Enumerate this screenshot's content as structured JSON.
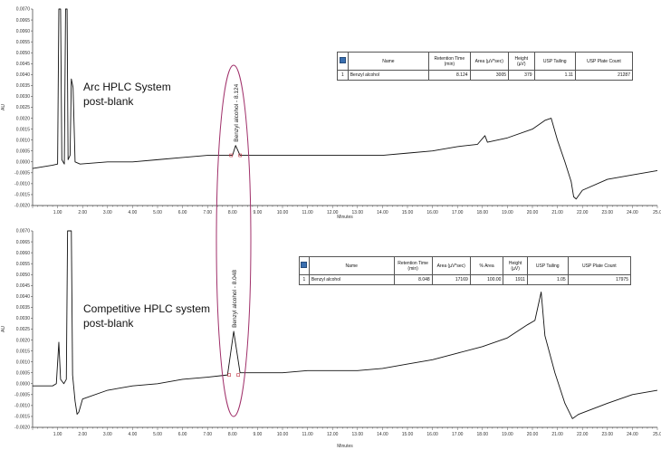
{
  "chart_data": [
    {
      "type": "line",
      "annotation": [
        "Arc HPLC System",
        "post-blank"
      ],
      "xlabel": "Minutes",
      "ylabel": "AU",
      "xlim": [
        0.0,
        25.0
      ],
      "ylim": [
        -0.002,
        0.007
      ],
      "xticks": [
        "1.00",
        "2.00",
        "3.00",
        "4.00",
        "5.00",
        "6.00",
        "7.00",
        "8.00",
        "9.00",
        "10.00",
        "11.00",
        "12.00",
        "13.00",
        "14.00",
        "15.00",
        "16.00",
        "17.00",
        "18.00",
        "19.00",
        "20.00",
        "21.00",
        "22.00",
        "23.00",
        "24.00",
        "25.0"
      ],
      "yticks": [
        "0.0070",
        "0.0065",
        "0.0060",
        "0.0055",
        "0.0050",
        "0.0045",
        "0.0040",
        "0.0035",
        "0.0030",
        "0.0025",
        "0.0020",
        "0.0015",
        "0.0010",
        "0.0005",
        "0.0000",
        "-0.0005",
        "-0.0010",
        "-0.0015",
        "-0.0020"
      ],
      "peak_label": "Benzyl alcohol - 8.124",
      "series": [
        {
          "points": [
            [
              0.0,
              -0.0003
            ],
            [
              0.8,
              -0.00015
            ],
            [
              1.0,
              -0.0001
            ],
            [
              1.05,
              0.0075
            ],
            [
              1.12,
              0.0075
            ],
            [
              1.17,
              0.0001
            ],
            [
              1.27,
              -0.0001
            ],
            [
              1.32,
              0.0075
            ],
            [
              1.38,
              0.0075
            ],
            [
              1.42,
              0.0001
            ],
            [
              1.5,
              0.0003
            ],
            [
              1.55,
              0.0038
            ],
            [
              1.62,
              0.0034
            ],
            [
              1.7,
              0.0
            ],
            [
              1.9,
              -0.0001
            ],
            [
              3.0,
              0.0
            ],
            [
              4.0,
              0.0
            ],
            [
              5.0,
              0.0001
            ],
            [
              6.0,
              0.0002
            ],
            [
              7.0,
              0.0003
            ],
            [
              8.0,
              0.0003
            ],
            [
              8.124,
              0.00075
            ],
            [
              8.3,
              0.0003
            ],
            [
              9.0,
              0.0003
            ],
            [
              10.0,
              0.0003
            ],
            [
              11.0,
              0.0003
            ],
            [
              12.0,
              0.0003
            ],
            [
              13.0,
              0.0003
            ],
            [
              14.0,
              0.0003
            ],
            [
              15.0,
              0.0004
            ],
            [
              16.0,
              0.0005
            ],
            [
              17.0,
              0.0007
            ],
            [
              17.8,
              0.0008
            ],
            [
              18.1,
              0.0012
            ],
            [
              18.2,
              0.0009
            ],
            [
              19.0,
              0.0011
            ],
            [
              20.0,
              0.0015
            ],
            [
              20.5,
              0.0019
            ],
            [
              20.75,
              0.002
            ],
            [
              21.0,
              0.001
            ],
            [
              21.3,
              0.0
            ],
            [
              21.55,
              -0.0009
            ],
            [
              21.65,
              -0.0016
            ],
            [
              21.75,
              -0.0017
            ],
            [
              22.0,
              -0.0013
            ],
            [
              23.0,
              -0.0008
            ],
            [
              24.0,
              -0.0006
            ],
            [
              25.0,
              -0.0004
            ]
          ]
        }
      ]
    },
    {
      "type": "line",
      "annotation": [
        "Competitive HPLC system",
        "post-blank"
      ],
      "xlabel": "Minutes",
      "ylabel": "AU",
      "xlim": [
        0.0,
        25.0
      ],
      "ylim": [
        -0.002,
        0.007
      ],
      "xticks": [
        "1.00",
        "2.00",
        "3.00",
        "4.00",
        "5.00",
        "6.00",
        "7.00",
        "8.00",
        "9.00",
        "10.00",
        "11.00",
        "12.00",
        "13.00",
        "14.00",
        "15.00",
        "16.00",
        "17.00",
        "18.00",
        "19.00",
        "20.00",
        "21.00",
        "22.00",
        "23.00",
        "24.00",
        "25.0"
      ],
      "yticks": [
        "0.0070",
        "0.0065",
        "0.0060",
        "0.0055",
        "0.0050",
        "0.0045",
        "0.0040",
        "0.0035",
        "0.0030",
        "0.0025",
        "0.0020",
        "0.0015",
        "0.0010",
        "0.0005",
        "0.0000",
        "-0.0005",
        "-0.0010",
        "-0.0015",
        "-0.0020"
      ],
      "peak_label": "Benzyl alcohol - 8.048",
      "series": [
        {
          "points": [
            [
              0.0,
              -0.0001
            ],
            [
              0.8,
              -0.0001
            ],
            [
              0.95,
              0.0
            ],
            [
              1.05,
              0.0019
            ],
            [
              1.12,
              0.0002
            ],
            [
              1.25,
              0.0
            ],
            [
              1.35,
              0.0002
            ],
            [
              1.4,
              0.0075
            ],
            [
              1.55,
              0.0075
            ],
            [
              1.6,
              0.0004
            ],
            [
              1.7,
              -0.0008
            ],
            [
              1.78,
              -0.0014
            ],
            [
              1.85,
              -0.0013
            ],
            [
              2.0,
              -0.0007
            ],
            [
              3.0,
              -0.0003
            ],
            [
              4.0,
              -0.0001
            ],
            [
              5.0,
              0.0
            ],
            [
              6.0,
              0.0002
            ],
            [
              7.0,
              0.0003
            ],
            [
              7.8,
              0.0004
            ],
            [
              8.048,
              0.0024
            ],
            [
              8.3,
              0.0005
            ],
            [
              9.0,
              0.0005
            ],
            [
              10.0,
              0.0005
            ],
            [
              11.0,
              0.0006
            ],
            [
              12.0,
              0.0006
            ],
            [
              13.0,
              0.0006
            ],
            [
              14.0,
              0.0007
            ],
            [
              15.0,
              0.0009
            ],
            [
              16.0,
              0.0011
            ],
            [
              17.0,
              0.0014
            ],
            [
              18.0,
              0.0017
            ],
            [
              19.0,
              0.0021
            ],
            [
              19.8,
              0.0027
            ],
            [
              20.1,
              0.0029
            ],
            [
              20.35,
              0.0042
            ],
            [
              20.5,
              0.0022
            ],
            [
              20.9,
              0.0005
            ],
            [
              21.3,
              -0.0009
            ],
            [
              21.6,
              -0.0016
            ],
            [
              21.85,
              -0.0014
            ],
            [
              23.0,
              -0.0009
            ],
            [
              24.0,
              -0.0005
            ],
            [
              25.0,
              -0.0003
            ]
          ]
        }
      ]
    }
  ],
  "tables": [
    {
      "headers": [
        "Name",
        "Retention Time (min)",
        "Area (µV*sec)",
        "Height (µV)",
        "USP Tailing",
        "USP Plate Count"
      ],
      "rows": [
        [
          "1",
          "Benzyl alcohol",
          "8.124",
          "3005",
          "379",
          "1.11",
          "21287"
        ]
      ]
    },
    {
      "headers": [
        "Name",
        "Retention Time (min)",
        "Area (µV*sec)",
        "% Area",
        "Height (µV)",
        "USP Tailing",
        "USP Plate Count"
      ],
      "rows": [
        [
          "1",
          "Benzyl alcohol",
          "8.048",
          "17169",
          "100.00",
          "1911",
          "1.05",
          "17975"
        ]
      ]
    }
  ],
  "colors": {
    "trace": "#111111",
    "ellipse": "#a0306a",
    "marker": "#c03040"
  }
}
